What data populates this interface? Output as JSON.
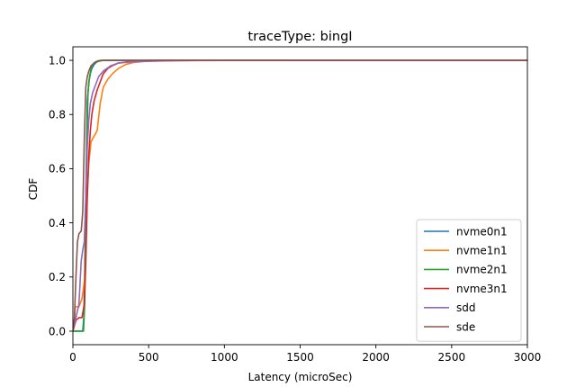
{
  "chart_data": {
    "type": "line",
    "title": "traceType: bingI",
    "xlabel": "Latency (microSec)",
    "ylabel": "CDF",
    "xlim": [
      0,
      3000
    ],
    "ylim": [
      -0.05,
      1.05
    ],
    "xticks": [
      0,
      500,
      1000,
      1500,
      2000,
      2500,
      3000
    ],
    "yticks": [
      0.0,
      0.2,
      0.4,
      0.6,
      0.8,
      1.0
    ],
    "xtick_labels": [
      "0",
      "500",
      "1000",
      "1500",
      "2000",
      "2500",
      "3000"
    ],
    "ytick_labels": [
      "0.0",
      "0.2",
      "0.4",
      "0.6",
      "0.8",
      "1.0"
    ],
    "grid": false,
    "legend_position": "lower-right",
    "series": [
      {
        "name": "nvme0n1",
        "color": "#1f77b4",
        "x": [
          0,
          65,
          72,
          80,
          88,
          95,
          105,
          115,
          125,
          140,
          160,
          180,
          200,
          300,
          3000
        ],
        "y": [
          0.0,
          0.0,
          0.05,
          0.3,
          0.6,
          0.85,
          0.92,
          0.95,
          0.97,
          0.985,
          0.995,
          0.999,
          1.0,
          1.0,
          1.0
        ]
      },
      {
        "name": "nvme1n1",
        "color": "#ff7f0e",
        "x": [
          0,
          8,
          15,
          40,
          60,
          75,
          85,
          95,
          105,
          120,
          140,
          160,
          180,
          200,
          230,
          260,
          300,
          350,
          400,
          500,
          600,
          3000
        ],
        "y": [
          0.0,
          0.02,
          0.09,
          0.09,
          0.12,
          0.18,
          0.3,
          0.5,
          0.62,
          0.7,
          0.72,
          0.74,
          0.84,
          0.9,
          0.93,
          0.95,
          0.97,
          0.985,
          0.992,
          0.998,
          1.0,
          1.0
        ]
      },
      {
        "name": "nvme2n1",
        "color": "#2ca02c",
        "x": [
          0,
          70,
          78,
          85,
          92,
          100,
          110,
          120,
          130,
          145,
          160,
          180,
          200,
          3000
        ],
        "y": [
          0.0,
          0.0,
          0.1,
          0.4,
          0.7,
          0.88,
          0.94,
          0.97,
          0.985,
          0.993,
          0.997,
          1.0,
          1.0,
          1.0
        ]
      },
      {
        "name": "nvme3n1",
        "color": "#d62728",
        "x": [
          0,
          20,
          40,
          60,
          75,
          85,
          95,
          105,
          115,
          125,
          140,
          160,
          180,
          200,
          230,
          260,
          300,
          400,
          500,
          3000
        ],
        "y": [
          0.0,
          0.04,
          0.05,
          0.05,
          0.1,
          0.25,
          0.5,
          0.65,
          0.74,
          0.8,
          0.85,
          0.89,
          0.92,
          0.95,
          0.97,
          0.98,
          0.99,
          0.997,
          1.0,
          1.0
        ]
      },
      {
        "name": "sdd",
        "color": "#9467bd",
        "x": [
          0,
          20,
          40,
          55,
          65,
          75,
          85,
          95,
          105,
          115,
          130,
          150,
          170,
          200,
          250,
          300,
          400,
          600,
          800,
          1000,
          1200,
          3000
        ],
        "y": [
          0.0,
          0.05,
          0.1,
          0.26,
          0.3,
          0.33,
          0.5,
          0.68,
          0.78,
          0.84,
          0.88,
          0.91,
          0.94,
          0.96,
          0.98,
          0.99,
          0.995,
          0.998,
          0.999,
          0.9995,
          0.9997,
          1.0
        ]
      },
      {
        "name": "sde",
        "color": "#8c564b",
        "x": [
          0,
          10,
          20,
          30,
          40,
          55,
          65,
          75,
          85,
          95,
          105,
          120,
          140,
          160,
          180,
          200,
          3000
        ],
        "y": [
          0.0,
          0.05,
          0.2,
          0.33,
          0.36,
          0.37,
          0.44,
          0.7,
          0.9,
          0.94,
          0.96,
          0.98,
          0.99,
          0.995,
          0.998,
          1.0,
          1.0
        ]
      }
    ]
  }
}
